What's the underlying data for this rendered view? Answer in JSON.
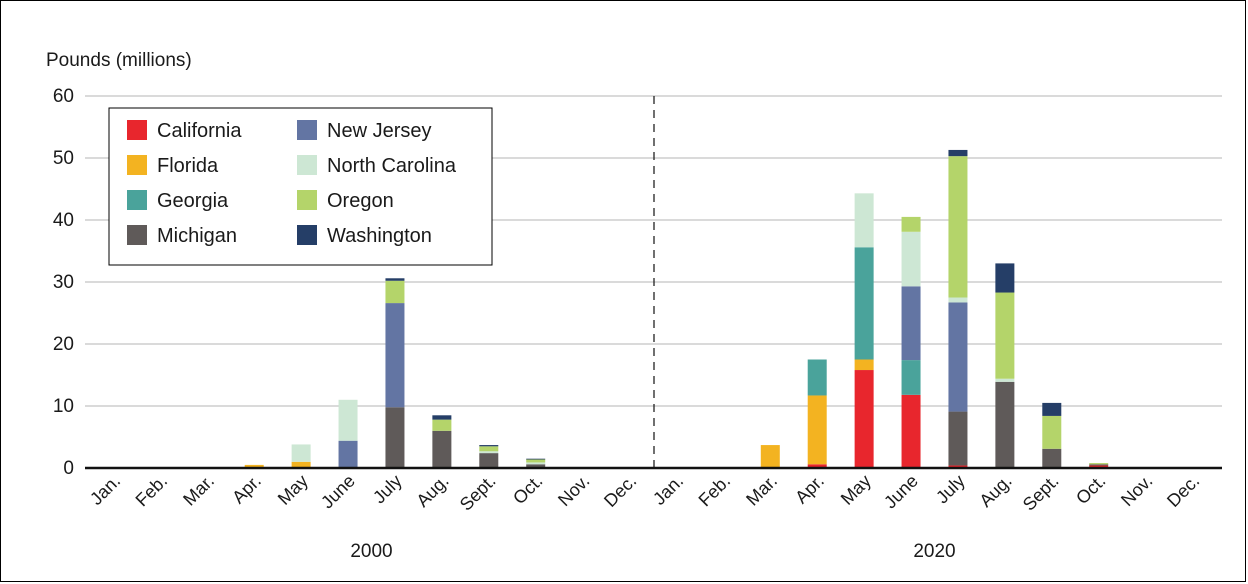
{
  "chart_data": {
    "type": "bar",
    "stacked": true,
    "ylabel": "Pounds (millions)",
    "ylim": [
      0,
      60
    ],
    "yticks": [
      0,
      10,
      20,
      30,
      40,
      50,
      60
    ],
    "grid": true,
    "legend_position": "top-left",
    "categories": [
      "Jan.",
      "Feb.",
      "Mar.",
      "Apr.",
      "May",
      "June",
      "July",
      "Aug.",
      "Sept.",
      "Oct.",
      "Nov.",
      "Dec."
    ],
    "groups": [
      "2000",
      "2020"
    ],
    "series": [
      {
        "name": "California",
        "color": "#e8262d",
        "values_2000": [
          0,
          0,
          0,
          0,
          0,
          0,
          0,
          0,
          0,
          0,
          0,
          0
        ],
        "values_2020": [
          0,
          0,
          0,
          0.6,
          15.8,
          11.8,
          0.4,
          0,
          0,
          0.4,
          0,
          0
        ]
      },
      {
        "name": "Florida",
        "color": "#f3b321",
        "values_2000": [
          0,
          0,
          0,
          0.5,
          1,
          0,
          0,
          0,
          0,
          0,
          0,
          0
        ],
        "values_2020": [
          0,
          0,
          3.7,
          11.1,
          1.7,
          0,
          0,
          0,
          0,
          0,
          0,
          0
        ]
      },
      {
        "name": "Georgia",
        "color": "#4aa39b",
        "values_2000": [
          0,
          0,
          0,
          0,
          0,
          0,
          0,
          0,
          0,
          0,
          0,
          0
        ],
        "values_2020": [
          0,
          0,
          0,
          5.8,
          18.1,
          5.6,
          0,
          0,
          0,
          0,
          0,
          0
        ]
      },
      {
        "name": "Michigan",
        "color": "#5f5a59",
        "values_2000": [
          0,
          0,
          0,
          0,
          0,
          0,
          9.8,
          6,
          2.4,
          0.6,
          0,
          0
        ],
        "values_2020": [
          0,
          0,
          0,
          0,
          0,
          0,
          8.7,
          13.9,
          3.1,
          0.2,
          0,
          0
        ]
      },
      {
        "name": "New Jersey",
        "color": "#6375a3",
        "values_2000": [
          0,
          0,
          0,
          0,
          0,
          4.4,
          16.8,
          0,
          0,
          0,
          0,
          0
        ],
        "values_2020": [
          0,
          0,
          0,
          0,
          0,
          11.9,
          17.6,
          0,
          0,
          0,
          0,
          0
        ]
      },
      {
        "name": "North Carolina",
        "color": "#cde7d4",
        "values_2000": [
          0,
          0,
          0,
          0,
          2.8,
          6.6,
          0,
          0,
          0.3,
          0.3,
          0,
          0
        ],
        "values_2020": [
          0,
          0,
          0,
          0,
          8.7,
          8.8,
          0.8,
          0.5,
          0,
          0,
          0,
          0
        ]
      },
      {
        "name": "Oregon",
        "color": "#b4d46a",
        "values_2000": [
          0,
          0,
          0,
          0,
          0,
          0,
          3.6,
          1.8,
          0.8,
          0.5,
          0,
          0
        ],
        "values_2020": [
          0,
          0,
          0,
          0,
          0,
          2.4,
          22.8,
          13.9,
          5.3,
          0.2,
          0,
          0
        ]
      },
      {
        "name": "Washington",
        "color": "#253e67",
        "values_2000": [
          0,
          0,
          0,
          0,
          0,
          0,
          0.4,
          0.7,
          0.2,
          0.1,
          0,
          0
        ],
        "values_2020": [
          0,
          0,
          0,
          0,
          0,
          0,
          1,
          4.7,
          2.1,
          0,
          0,
          0
        ]
      }
    ]
  }
}
